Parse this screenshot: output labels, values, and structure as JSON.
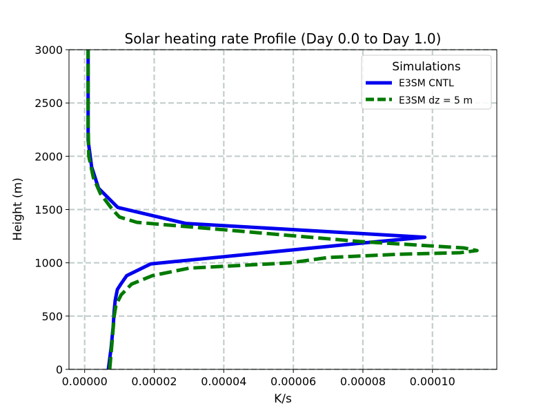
{
  "chart_data": {
    "type": "line",
    "title": "Solar heating rate Profile (Day 0.0 to Day 1.0)",
    "xlabel": "K/s",
    "ylabel": "Height (m)",
    "xlim": [
      -4.5e-06,
      0.0001185
    ],
    "ylim": [
      0,
      3000
    ],
    "grid": true,
    "xticks": [
      0.0,
      2e-05,
      4e-05,
      6e-05,
      8e-05,
      0.0001
    ],
    "xtick_labels": [
      "0.00000",
      "0.00002",
      "0.00004",
      "0.00006",
      "0.00008",
      "0.00010"
    ],
    "yticks": [
      0,
      500,
      1000,
      1500,
      2000,
      2500,
      3000
    ],
    "ytick_labels": [
      "0",
      "500",
      "1000",
      "1500",
      "2000",
      "2500",
      "3000"
    ],
    "legend": {
      "title": "Simulations",
      "location": "upper right"
    },
    "series": [
      {
        "name": "E3SM CNTL",
        "color": "#0000ee",
        "style": "solid",
        "x": [
          6.8e-06,
          7.6e-06,
          8.2e-06,
          8.5e-06,
          8.8e-06,
          9.4e-06,
          1.04e-05,
          1.21e-05,
          1.9e-05,
          7.8e-05,
          9.78e-05,
          2.9e-05,
          9.5e-06,
          4e-06,
          2e-06,
          1e-06,
          1e-06,
          1e-06,
          1e-06
        ],
        "y": [
          0,
          200,
          400,
          550,
          650,
          750,
          800,
          880,
          990,
          1180,
          1240,
          1370,
          1520,
          1700,
          1900,
          2150,
          2500,
          2800,
          3000
        ]
      },
      {
        "name": "E3SM dz = 5 m",
        "color": "#007a00",
        "style": "dashed",
        "x": [
          7.2e-06,
          8e-06,
          8.5e-06,
          9e-06,
          1.05e-05,
          1.35e-05,
          1.95e-05,
          3e-05,
          5.9e-05,
          7e-05,
          9e-05,
          0.000108,
          0.0001128,
          0.000109,
          7.9e-05,
          4e-05,
          1.5e-05,
          1e-05,
          8e-06,
          4.5e-06,
          2.5e-06,
          1.2e-06,
          1e-06,
          1e-06,
          1e-06
        ],
        "y": [
          0,
          300,
          500,
          600,
          700,
          800,
          880,
          950,
          1000,
          1050,
          1080,
          1095,
          1115,
          1140,
          1200,
          1310,
          1380,
          1430,
          1500,
          1650,
          1800,
          2000,
          2300,
          2700,
          3000
        ]
      }
    ]
  }
}
